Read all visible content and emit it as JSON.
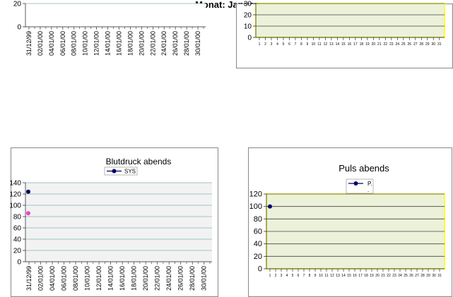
{
  "header": {
    "month_title": "Monat: Januar"
  },
  "chart_data": [
    {
      "type": "scatter",
      "position": "top-left",
      "title": "",
      "x_categories": [
        "31/12/99",
        "02/01/00",
        "04/01/00",
        "06/01/00",
        "08/01/00",
        "10/01/00",
        "12/01/00",
        "14/01/00",
        "16/01/00",
        "18/01/00",
        "20/01/00",
        "22/01/00",
        "24/01/00",
        "26/01/00",
        "28/01/00",
        "30/01/00"
      ],
      "yticks": [
        0,
        20
      ],
      "series": [],
      "grid": true
    },
    {
      "type": "scatter",
      "position": "top-right",
      "title": "",
      "x_categories": [
        "1",
        "2",
        "3",
        "4",
        "5",
        "6",
        "7",
        "8",
        "9",
        "10",
        "11",
        "12",
        "13",
        "14",
        "15",
        "16",
        "17",
        "18",
        "19",
        "20",
        "21",
        "22",
        "23",
        "24",
        "25",
        "26",
        "27",
        "28",
        "29",
        "30",
        "31"
      ],
      "yticks": [
        0,
        10,
        20,
        30
      ],
      "series": [],
      "grid": true,
      "plot_color": "#ecf1da",
      "border_color": "#ffff00"
    },
    {
      "type": "scatter",
      "position": "bottom-left",
      "title": "Blutdruck abends",
      "x_categories": [
        "31/12/99",
        "02/01/00",
        "04/01/00",
        "06/01/00",
        "08/01/00",
        "10/01/00",
        "12/01/00",
        "14/01/00",
        "16/01/00",
        "18/01/00",
        "20/01/00",
        "22/01/00",
        "24/01/00",
        "26/01/00",
        "28/01/00",
        "30/01/00"
      ],
      "yticks": [
        0,
        20,
        40,
        60,
        80,
        100,
        120,
        140
      ],
      "ylim": [
        0,
        140
      ],
      "series": [
        {
          "name": "SYS",
          "color": "#000066",
          "x": [
            "31/12/99"
          ],
          "y": [
            124
          ]
        },
        {
          "name": "",
          "color": "#ee44cc",
          "x": [
            "31/12/99"
          ],
          "y": [
            86
          ]
        }
      ],
      "legend": "top-center",
      "grid": true,
      "plot_color": "#f2f2f2"
    },
    {
      "type": "line",
      "position": "bottom-right",
      "title": "Puls abends",
      "x_categories": [
        "1",
        "2",
        "3",
        "4",
        "5",
        "6",
        "7",
        "8",
        "9",
        "10",
        "11",
        "12",
        "13",
        "14",
        "15",
        "16",
        "17",
        "18",
        "19",
        "20",
        "21",
        "22",
        "23",
        "24",
        "25",
        "26",
        "27",
        "28",
        "29",
        "30",
        "31"
      ],
      "yticks": [
        0,
        20,
        40,
        60,
        80,
        100,
        120
      ],
      "ylim": [
        0,
        120
      ],
      "series": [
        {
          "name": "P..",
          "color": "#000066",
          "x": [
            "1"
          ],
          "y": [
            100
          ]
        }
      ],
      "legend": "top-center",
      "grid": true,
      "plot_color": "#ecf1da",
      "border_color": "#ffff00"
    }
  ]
}
